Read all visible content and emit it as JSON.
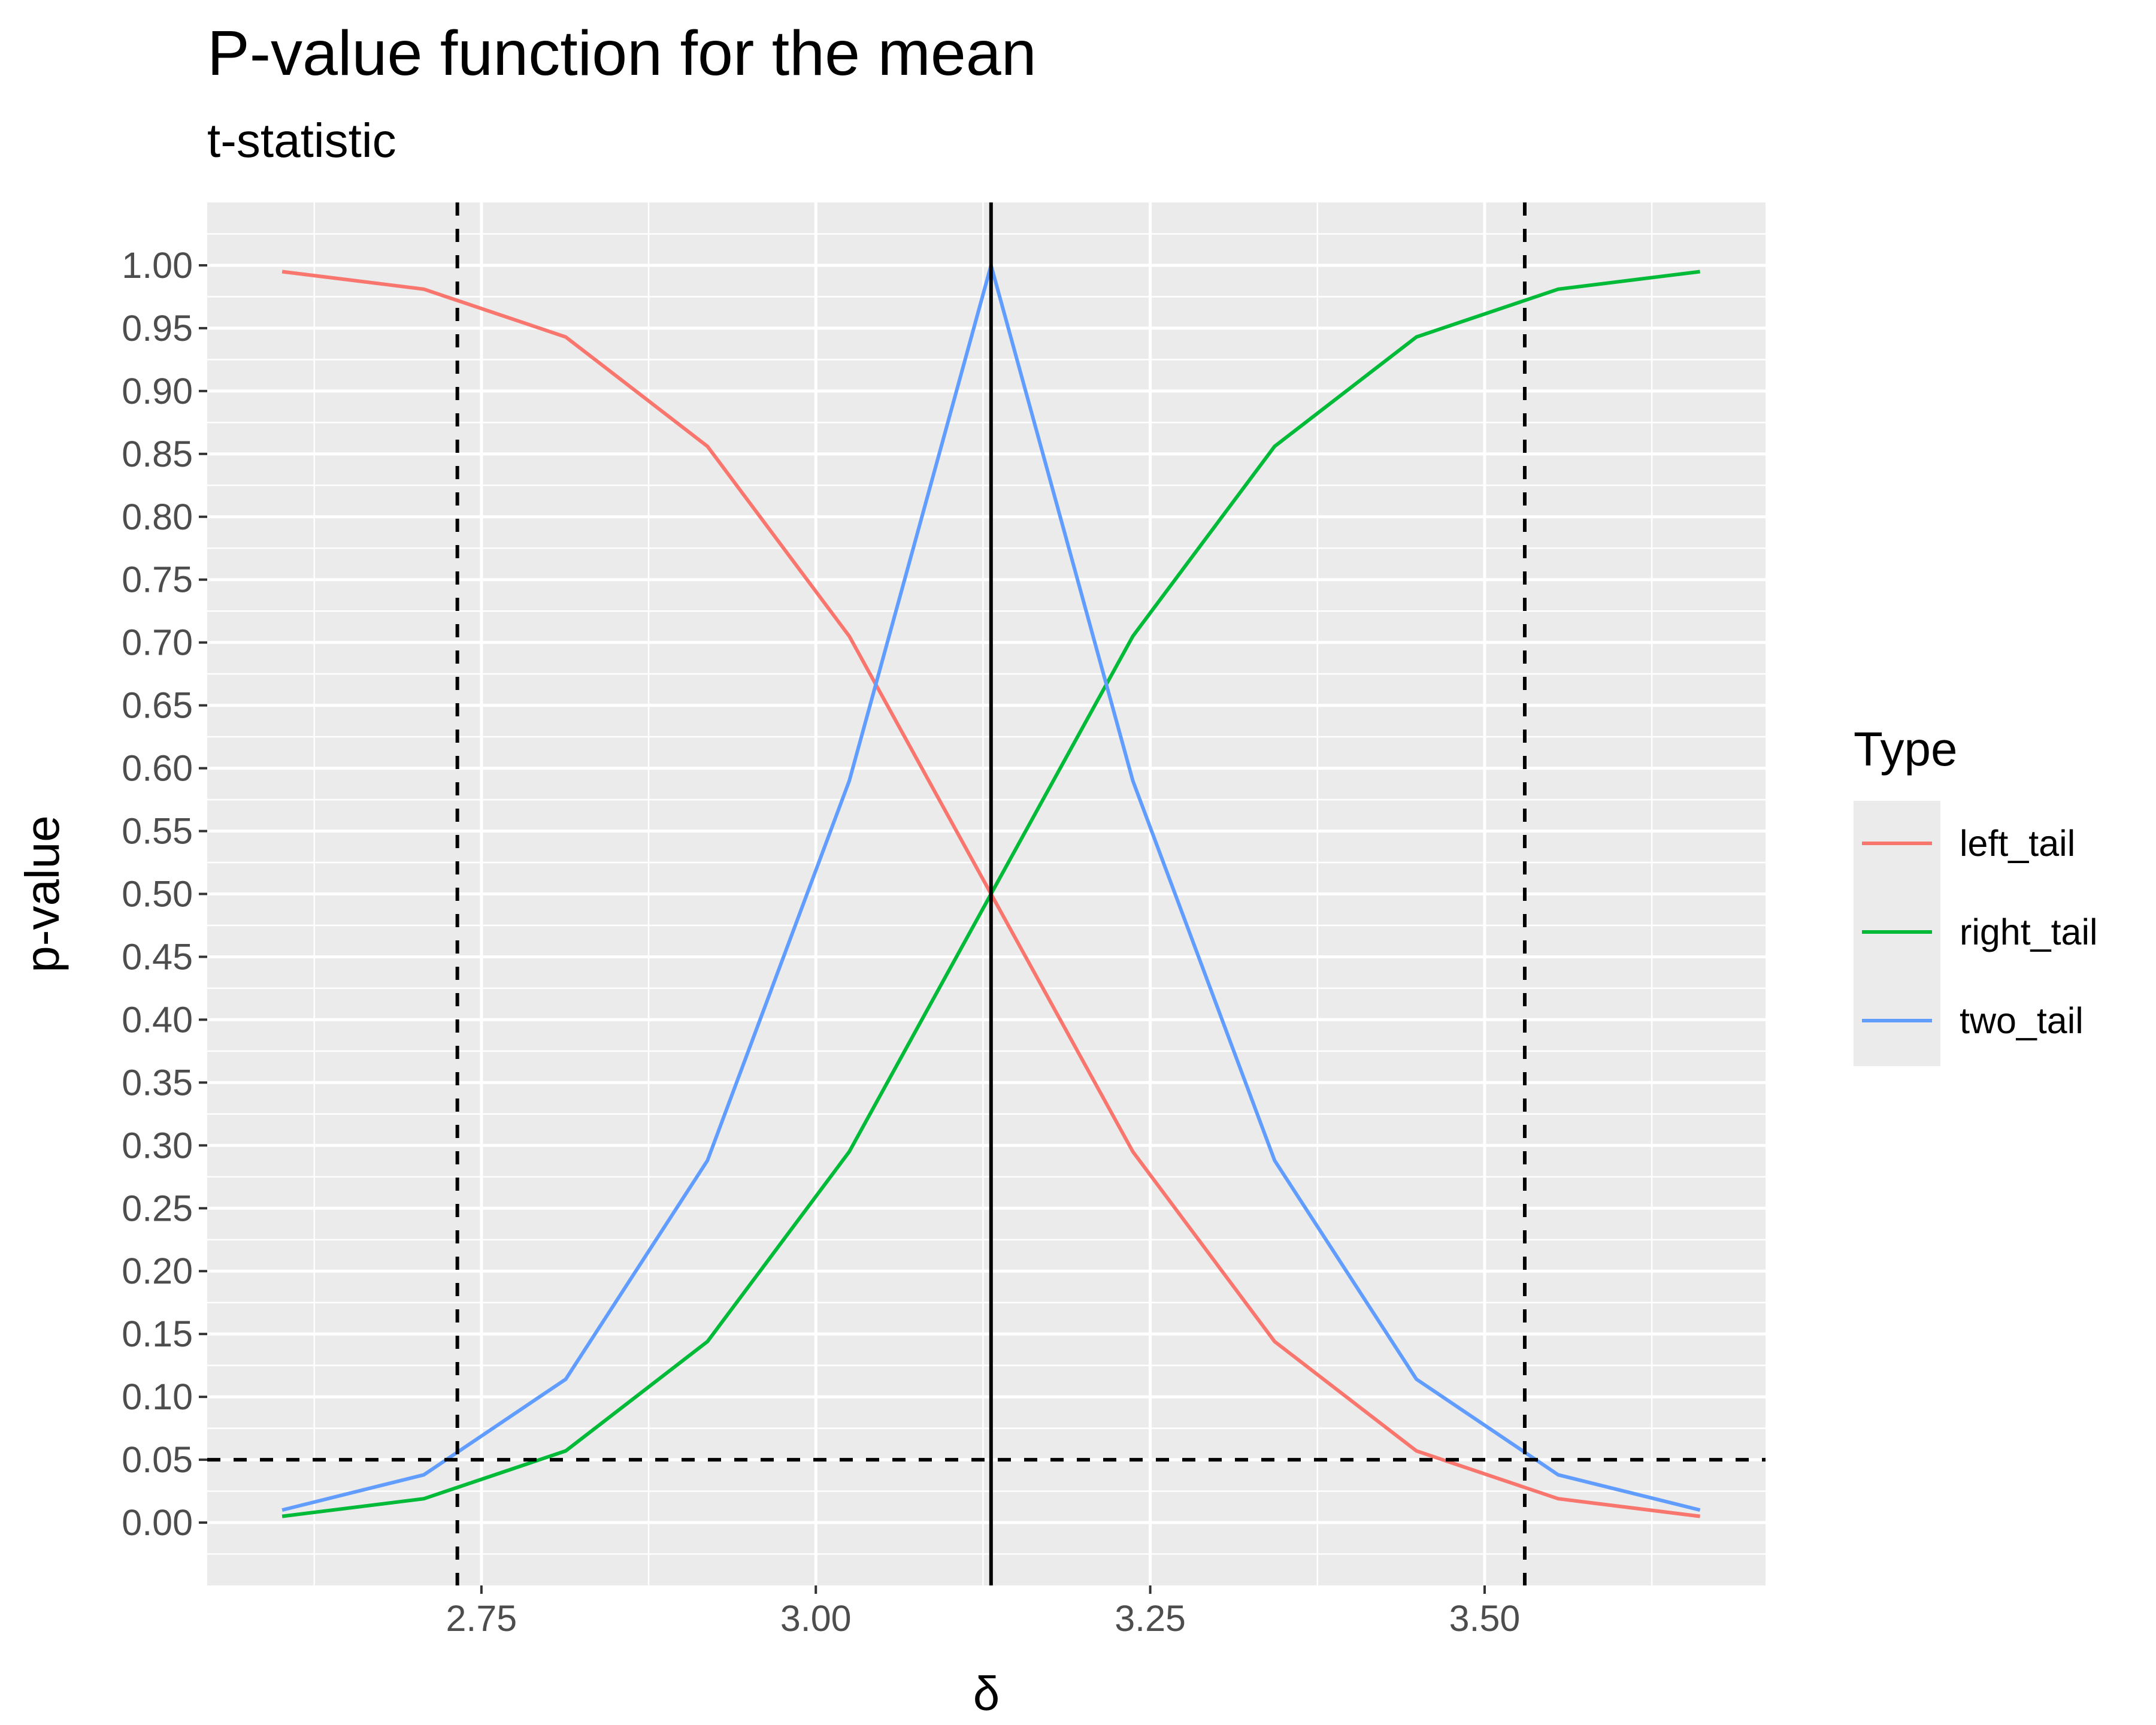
{
  "chart_data": {
    "type": "line",
    "title": "P-value function for the mean",
    "subtitle": "t-statistic",
    "xlabel": "δ",
    "ylabel": "p-value",
    "xlim": [
      2.545,
      3.71
    ],
    "ylim": [
      -0.05,
      1.05
    ],
    "x_ticks": [
      2.75,
      3.0,
      3.25,
      3.5
    ],
    "x_tick_labels": [
      "2.75",
      "3.00",
      "3.25",
      "3.50"
    ],
    "y_ticks": [
      0,
      0.05,
      0.1,
      0.15,
      0.2,
      0.25,
      0.3,
      0.35,
      0.4,
      0.45,
      0.5,
      0.55,
      0.6,
      0.65,
      0.7,
      0.75,
      0.8,
      0.85,
      0.9,
      0.95,
      1.0
    ],
    "y_tick_labels": [
      "0.00",
      "0.05",
      "0.10",
      "0.15",
      "0.20",
      "0.25",
      "0.30",
      "0.35",
      "0.40",
      "0.45",
      "0.50",
      "0.55",
      "0.60",
      "0.65",
      "0.70",
      "0.75",
      "0.80",
      "0.85",
      "0.90",
      "0.95",
      "1.00"
    ],
    "grid": true,
    "background": "#ebebeb",
    "legend_position": "right",
    "legend_title": "Type",
    "x": [
      2.601,
      2.707,
      2.813,
      2.919,
      3.025,
      3.131,
      3.237,
      3.343,
      3.449,
      3.555,
      3.661
    ],
    "series": [
      {
        "name": "left_tail",
        "color": "#f8766d",
        "values": [
          0.995,
          0.981,
          0.943,
          0.856,
          0.705,
          0.5,
          0.295,
          0.144,
          0.057,
          0.019,
          0.005
        ]
      },
      {
        "name": "right_tail",
        "color": "#00ba38",
        "values": [
          0.005,
          0.019,
          0.057,
          0.144,
          0.295,
          0.5,
          0.705,
          0.856,
          0.943,
          0.981,
          0.995
        ]
      },
      {
        "name": "two_tail",
        "color": "#619cff",
        "values": [
          0.01,
          0.038,
          0.114,
          0.288,
          0.59,
          1.0,
          0.59,
          0.288,
          0.114,
          0.038,
          0.01
        ]
      }
    ],
    "reference_lines": [
      {
        "orientation": "vertical",
        "value": 3.131,
        "style": "solid"
      },
      {
        "orientation": "vertical",
        "value": 2.732,
        "style": "dashed"
      },
      {
        "orientation": "vertical",
        "value": 3.53,
        "style": "dashed"
      },
      {
        "orientation": "horizontal",
        "value": 0.05,
        "style": "dashed"
      }
    ]
  }
}
